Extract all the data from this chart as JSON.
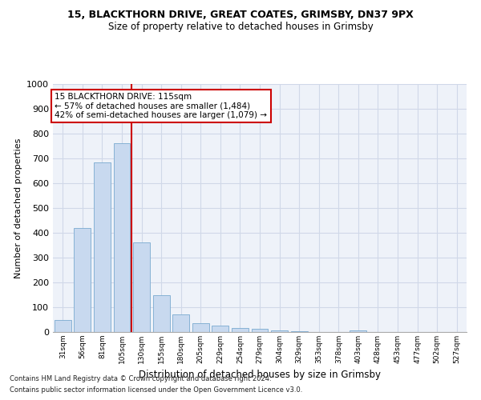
{
  "title1": "15, BLACKTHORN DRIVE, GREAT COATES, GRIMSBY, DN37 9PX",
  "title2": "Size of property relative to detached houses in Grimsby",
  "xlabel": "Distribution of detached houses by size in Grimsby",
  "ylabel": "Number of detached properties",
  "categories": [
    "31sqm",
    "56sqm",
    "81sqm",
    "105sqm",
    "130sqm",
    "155sqm",
    "180sqm",
    "205sqm",
    "229sqm",
    "254sqm",
    "279sqm",
    "304sqm",
    "329sqm",
    "353sqm",
    "378sqm",
    "403sqm",
    "428sqm",
    "453sqm",
    "477sqm",
    "502sqm",
    "527sqm"
  ],
  "values": [
    50,
    420,
    685,
    760,
    360,
    150,
    70,
    35,
    25,
    15,
    13,
    8,
    3,
    0,
    0,
    8,
    0,
    0,
    0,
    0,
    0
  ],
  "bar_color": "#c8d9ef",
  "bar_edge_color": "#7aaad0",
  "vline_color": "#cc0000",
  "vline_index": 3,
  "annotation_text": "15 BLACKTHORN DRIVE: 115sqm\n← 57% of detached houses are smaller (1,484)\n42% of semi-detached houses are larger (1,079) →",
  "annotation_box_color": "#cc0000",
  "annotation_bg": "#ffffff",
  "ylim": [
    0,
    1000
  ],
  "yticks": [
    0,
    100,
    200,
    300,
    400,
    500,
    600,
    700,
    800,
    900,
    1000
  ],
  "footer1": "Contains HM Land Registry data © Crown copyright and database right 2024.",
  "footer2": "Contains public sector information licensed under the Open Government Licence v3.0.",
  "grid_color": "#d0d8e8",
  "bg_color": "#eef2f9"
}
